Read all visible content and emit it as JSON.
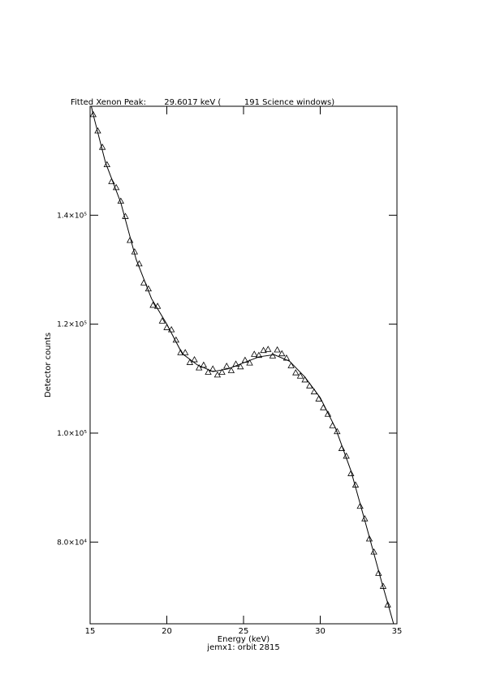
{
  "chart_data": {
    "type": "scatter",
    "title": "Fitted Xenon Peak:       29.6017 keV (         191 Science windows)",
    "xlabel": "Energy (keV)",
    "subtitle": "jemx1: orbit 2815",
    "ylabel": "Detector counts",
    "xlim": [
      15,
      35
    ],
    "ylim": [
      65000,
      160000
    ],
    "xticks": [
      15,
      20,
      25,
      30,
      35
    ],
    "yticks": [
      {
        "value": 80000,
        "label": "8.0×10⁴"
      },
      {
        "value": 100000,
        "label": "1.0×10⁵"
      },
      {
        "value": 120000,
        "label": "1.2×10⁵"
      },
      {
        "value": 140000,
        "label": "1.4×10⁵"
      }
    ],
    "series": [
      {
        "style": "triangles",
        "color": "#000000",
        "x": [
          15.2,
          15.5,
          15.8,
          16.1,
          16.4,
          16.7,
          17.0,
          17.3,
          17.6,
          17.9,
          18.2,
          18.5,
          18.8,
          19.1,
          19.4,
          19.7,
          20.0,
          20.3,
          20.6,
          20.9,
          21.2,
          21.5,
          21.8,
          22.1,
          22.4,
          22.7,
          23.0,
          23.3,
          23.6,
          23.9,
          24.2,
          24.5,
          24.8,
          25.1,
          25.4,
          25.7,
          26.0,
          26.3,
          26.6,
          26.9,
          27.2,
          27.5,
          27.8,
          28.1,
          28.4,
          28.7,
          29.0,
          29.3,
          29.6,
          29.9,
          30.2,
          30.5,
          30.8,
          31.1,
          31.4,
          31.7,
          32.0,
          32.3,
          32.6,
          32.9,
          33.2,
          33.5,
          33.8,
          34.1,
          34.4
        ],
        "values": [
          158500,
          155500,
          152500,
          149300,
          146200,
          145100,
          142600,
          139800,
          135400,
          133300,
          131100,
          127600,
          126500,
          123500,
          123300,
          120600,
          119400,
          119000,
          117100,
          114800,
          114800,
          113000,
          113500,
          112000,
          112500,
          111200,
          111800,
          110700,
          111200,
          112300,
          111500,
          112700,
          112200,
          113400,
          112900,
          114500,
          114300,
          115200,
          115400,
          114200,
          115300,
          114600,
          113800,
          112400,
          111100,
          110500,
          109800,
          108700,
          107600,
          106300,
          104700,
          103500,
          101400,
          100300,
          97200,
          95800,
          92600,
          90500,
          86600,
          84300,
          80600,
          78200,
          74300,
          71900,
          68500
        ]
      },
      {
        "style": "line",
        "color": "#000000",
        "x": [
          15.0,
          15.2,
          16,
          17,
          18,
          19,
          20,
          21,
          22,
          23,
          24,
          25,
          26,
          27,
          28,
          29,
          30,
          31,
          32,
          33,
          34,
          34.5,
          35
        ],
        "values": [
          161000,
          158500,
          149700,
          142300,
          131900,
          124700,
          120000,
          114600,
          112500,
          111300,
          111800,
          112900,
          114000,
          114400,
          113200,
          110300,
          106500,
          100900,
          93100,
          83000,
          72700,
          67800,
          62800
        ]
      }
    ]
  }
}
